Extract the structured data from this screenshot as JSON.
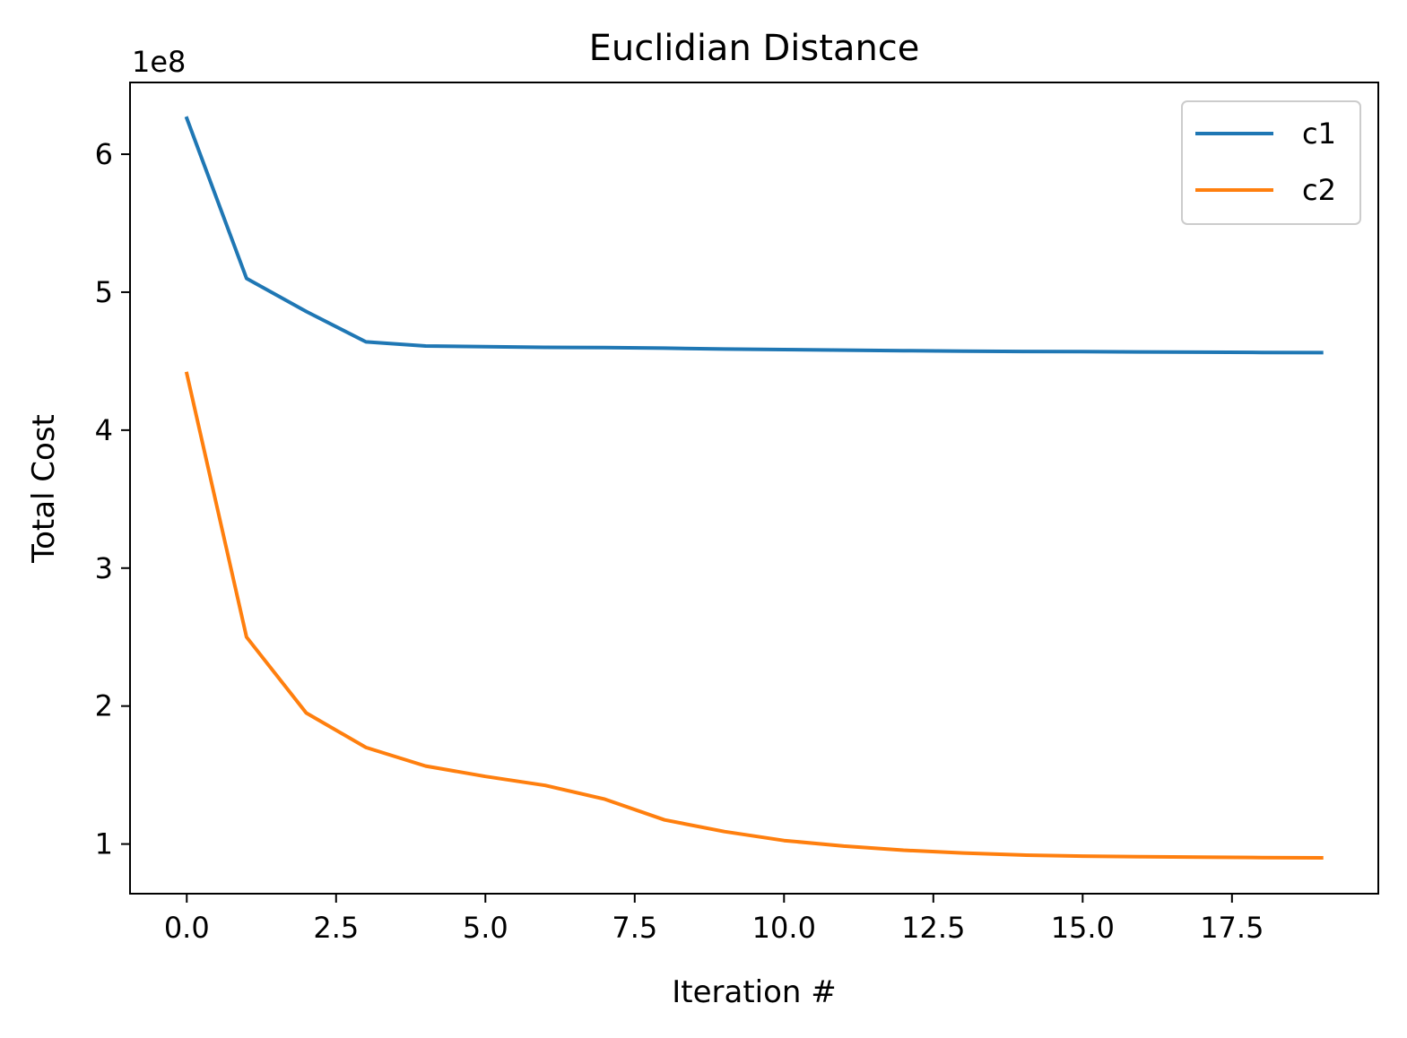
{
  "chart_data": {
    "type": "line",
    "title": "Euclidian Distance",
    "xlabel": "Iteration #",
    "ylabel": "Total Cost",
    "y_offset_label": "1e8",
    "xlim": [
      -0.95,
      19.95
    ],
    "ylim": [
      0.64,
      6.52
    ],
    "x_ticks": [
      0,
      2.5,
      5,
      7.5,
      10,
      12.5,
      15,
      17.5
    ],
    "x_tick_labels": [
      "0.0",
      "2.5",
      "5.0",
      "7.5",
      "10.0",
      "12.5",
      "15.0",
      "17.5"
    ],
    "y_ticks": [
      1,
      2,
      3,
      4,
      5,
      6
    ],
    "y_tick_labels": [
      "1",
      "2",
      "3",
      "4",
      "5",
      "6"
    ],
    "x": [
      0,
      1,
      2,
      3,
      4,
      5,
      6,
      7,
      8,
      9,
      10,
      11,
      12,
      13,
      14,
      15,
      16,
      17,
      18,
      19
    ],
    "series": [
      {
        "name": "c1",
        "color": "#1f77b4",
        "values": [
          6.26,
          5.1,
          4.86,
          4.64,
          4.61,
          4.605,
          4.6,
          4.598,
          4.594,
          4.588,
          4.584,
          4.58,
          4.576,
          4.573,
          4.57,
          4.569,
          4.567,
          4.565,
          4.563,
          4.562
        ]
      },
      {
        "name": "c2",
        "color": "#ff7f0e",
        "values": [
          4.41,
          2.5,
          1.95,
          1.7,
          1.565,
          1.49,
          1.425,
          1.325,
          1.175,
          1.09,
          1.025,
          0.985,
          0.955,
          0.935,
          0.92,
          0.912,
          0.908,
          0.905,
          0.902,
          0.9
        ]
      }
    ],
    "legend": {
      "placement": "top-right"
    },
    "grid": false
  }
}
